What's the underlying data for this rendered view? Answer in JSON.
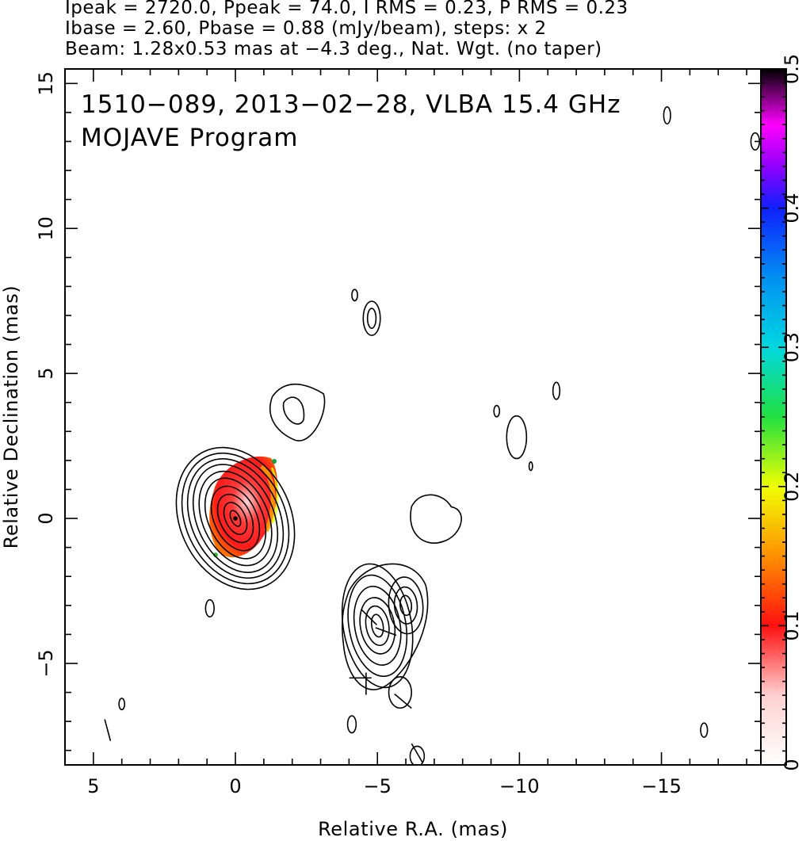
{
  "header": {
    "line1": "Ipeak = 2720.0, Ppeak = 74.0, I RMS = 0.23, P RMS = 0.23",
    "line2": "Ibase = 2.60, Pbase = 0.88 (mJy/beam), steps: x 2",
    "line3": "Beam: 1.28x0.53 mas at −4.3 deg., Nat. Wgt. (no taper)"
  },
  "chart_data": {
    "type": "contour",
    "title": "1510−089, 2013−02−28, VLBA 15.4 GHz",
    "subtitle": "MOJAVE Program",
    "xlabel": "Relative R.A. (mas)",
    "ylabel": "Relative Declination (mas)",
    "xlim": [
      6.0,
      -18.5
    ],
    "ylim": [
      -8.5,
      15.5
    ],
    "x_ticks": [
      5,
      0,
      -5,
      -10,
      -15
    ],
    "x_tick_labels": [
      "5",
      "0",
      "−5",
      "−10",
      "−15"
    ],
    "y_ticks": [
      -5,
      0,
      5,
      10,
      15
    ],
    "y_tick_labels": [
      "−5",
      "0",
      "5",
      "10",
      "15"
    ],
    "colorbar": {
      "min": 0,
      "max": 0.5,
      "ticks": [
        0,
        0.1,
        0.2,
        0.3,
        0.4,
        0.5
      ],
      "tick_labels": [
        "0",
        "0.1",
        "0.2",
        "0.3",
        "0.4",
        "0.5"
      ],
      "gradient": [
        [
          0.0,
          "#ffffff"
        ],
        [
          0.05,
          "#ffd0d0"
        ],
        [
          0.1,
          "#ff1010"
        ],
        [
          0.15,
          "#ff9000"
        ],
        [
          0.2,
          "#f0ff00"
        ],
        [
          0.25,
          "#20e040"
        ],
        [
          0.3,
          "#00d8e0"
        ],
        [
          0.35,
          "#0090f0"
        ],
        [
          0.4,
          "#1020ff"
        ],
        [
          0.43,
          "#9000ff"
        ],
        [
          0.46,
          "#ff00ff"
        ],
        [
          0.5,
          "#000000"
        ]
      ]
    },
    "core": {
      "x": 0,
      "y": 0,
      "ellipse_rx": [
        0.15,
        0.35,
        0.55,
        0.75,
        0.95,
        1.15,
        1.35,
        1.55,
        1.75,
        1.95
      ],
      "ellipse_ry": [
        0.3,
        0.6,
        0.9,
        1.2,
        1.5,
        1.75,
        2.0,
        2.2,
        2.4,
        2.6
      ],
      "angle_deg": -25
    },
    "knot": {
      "x": -5.0,
      "y": -3.7,
      "ellipse_rx": [
        0.2,
        0.4,
        0.6,
        0.8,
        1.0,
        1.2
      ],
      "ellipse_ry": [
        0.4,
        0.7,
        1.0,
        1.4,
        1.8,
        2.2
      ],
      "angle_deg": -10
    },
    "small_contours": [
      {
        "x": -4.8,
        "y": 6.9,
        "rx": 0.3,
        "ry": 0.6
      },
      {
        "x": -4.8,
        "y": 6.9,
        "rx": 0.15,
        "ry": 0.35
      },
      {
        "x": -4.2,
        "y": 7.7,
        "rx": 0.1,
        "ry": 0.2
      },
      {
        "x": -9.9,
        "y": 2.8,
        "rx": 0.35,
        "ry": 0.75
      },
      {
        "x": -9.2,
        "y": 3.7,
        "rx": 0.1,
        "ry": 0.2
      },
      {
        "x": -11.3,
        "y": 4.4,
        "rx": 0.12,
        "ry": 0.3
      },
      {
        "x": -10.4,
        "y": 1.8,
        "rx": 0.06,
        "ry": 0.15
      },
      {
        "x": 0.9,
        "y": -3.1,
        "rx": 0.15,
        "ry": 0.3
      },
      {
        "x": -4.1,
        "y": -7.1,
        "rx": 0.15,
        "ry": 0.3
      },
      {
        "x": -6.4,
        "y": -8.2,
        "rx": 0.25,
        "ry": 0.35
      },
      {
        "x": 4.0,
        "y": -6.4,
        "rx": 0.1,
        "ry": 0.2
      },
      {
        "x": -15.2,
        "y": 13.9,
        "rx": 0.12,
        "ry": 0.3
      },
      {
        "x": -16.5,
        "y": -7.3,
        "rx": 0.12,
        "ry": 0.25
      },
      {
        "x": -18.3,
        "y": 13.0,
        "rx": 0.15,
        "ry": 0.3
      }
    ]
  }
}
